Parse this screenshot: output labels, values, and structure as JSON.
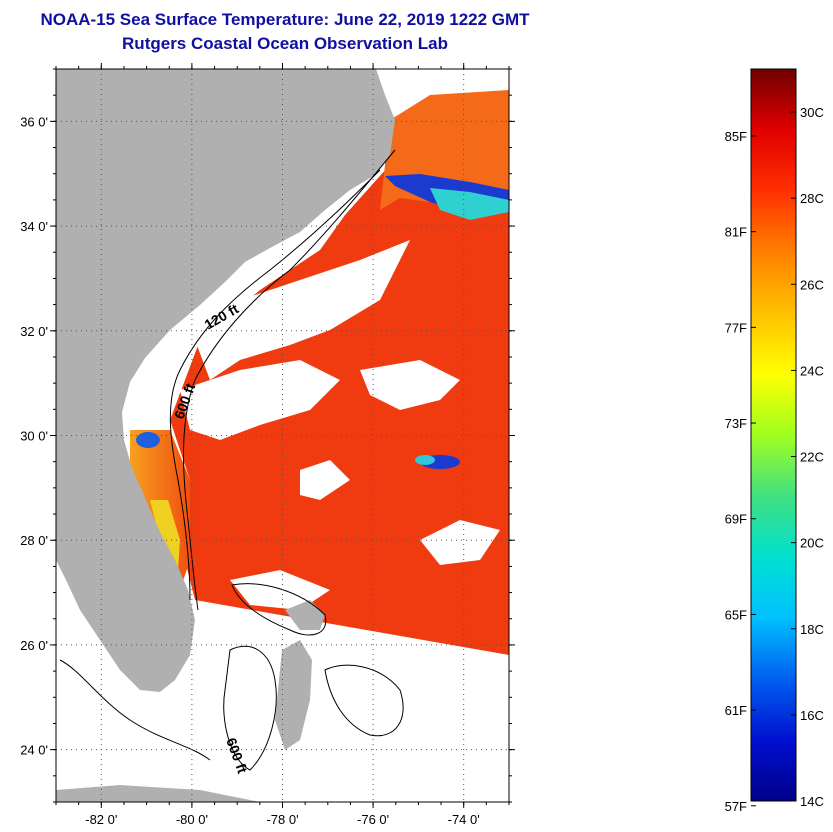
{
  "header": {
    "title": "NOAA-15 Sea Surface Temperature:  June 22, 2019 1222 GMT",
    "subtitle": "Rutgers Coastal Ocean Observation Lab"
  },
  "map": {
    "lon_range": [
      -83,
      -73
    ],
    "lat_range": [
      23,
      37
    ],
    "lat_ticks": [
      {
        "value": 36,
        "label": "36 0'"
      },
      {
        "value": 34,
        "label": "34 0'"
      },
      {
        "value": 32,
        "label": "32 0'"
      },
      {
        "value": 30,
        "label": "30 0'"
      },
      {
        "value": 28,
        "label": "28 0'"
      },
      {
        "value": 26,
        "label": "26 0'"
      },
      {
        "value": 24,
        "label": "24 0'"
      }
    ],
    "lon_ticks": [
      {
        "value": -82,
        "label": "-82 0'"
      },
      {
        "value": -80,
        "label": "-80 0'"
      },
      {
        "value": -78,
        "label": "-78 0'"
      },
      {
        "value": -76,
        "label": "-76 0'"
      },
      {
        "value": -74,
        "label": "-74 0'"
      }
    ],
    "contour_labels": [
      "120 ft",
      "600 ft",
      "600 ft"
    ],
    "colors": {
      "land": "#b0b0b0",
      "cloud": "#ffffff",
      "sst_main": "#f03a10",
      "sst_warm_orange": "#f56a18",
      "cold_band": "#1a3ad0"
    }
  },
  "colorbar": {
    "celsius_labels": [
      {
        "value": 30,
        "label": "30C"
      },
      {
        "value": 28,
        "label": "28C"
      },
      {
        "value": 26,
        "label": "26C"
      },
      {
        "value": 24,
        "label": "24C"
      },
      {
        "value": 22,
        "label": "22C"
      },
      {
        "value": 20,
        "label": "20C"
      },
      {
        "value": 18,
        "label": "18C"
      },
      {
        "value": 16,
        "label": "16C"
      },
      {
        "value": 14,
        "label": "14C"
      }
    ],
    "fahrenheit_labels": [
      {
        "value": 85,
        "label": "85F"
      },
      {
        "value": 81,
        "label": "81F"
      },
      {
        "value": 77,
        "label": "77F"
      },
      {
        "value": 73,
        "label": "73F"
      },
      {
        "value": 69,
        "label": "69F"
      },
      {
        "value": 65,
        "label": "65F"
      },
      {
        "value": 61,
        "label": "61F"
      },
      {
        "value": 57,
        "label": "57F"
      }
    ],
    "range_c": [
      14,
      31
    ],
    "stops": [
      "#00008a",
      "#0010d0",
      "#0060f0",
      "#00c0ff",
      "#00e0d0",
      "#40e080",
      "#a0ff20",
      "#ffff00",
      "#ffc000",
      "#ff8000",
      "#ff3000",
      "#e00000",
      "#700000"
    ]
  }
}
